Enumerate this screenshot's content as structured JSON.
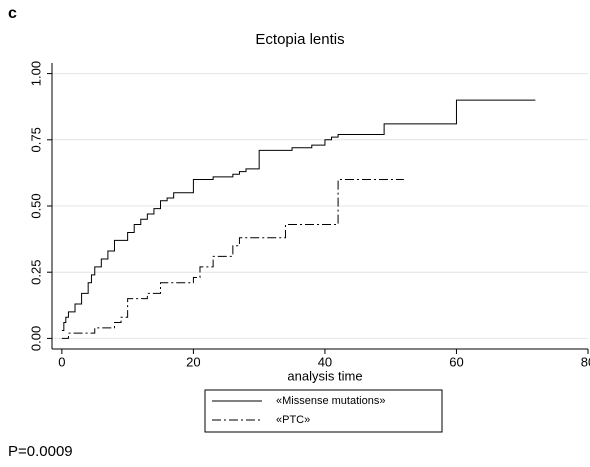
{
  "chart_data": {
    "type": "step",
    "panel_label": "c",
    "title": "Ectopia lentis",
    "x_label": "analysis time",
    "annotation": "P=0.0009",
    "xlim": [
      -1.5,
      80
    ],
    "xticks": [
      0,
      20,
      40,
      60,
      80
    ],
    "ylim": [
      -0.04,
      1.04
    ],
    "yticks": [
      {
        "value": 0,
        "label": "0.00"
      },
      {
        "value": 0.25,
        "label": "0.25"
      },
      {
        "value": 0.5,
        "label": "0.50"
      },
      {
        "value": 0.75,
        "label": "0.75"
      },
      {
        "value": 1,
        "label": "1.00"
      }
    ],
    "grid": true,
    "series": [
      {
        "name": "«Missense mutations»",
        "color": "#000000",
        "dash": "solid",
        "x": [
          0,
          0.3,
          0.6,
          1,
          2,
          3,
          4,
          4.5,
          5,
          6,
          7,
          8,
          10,
          11,
          12,
          13,
          14,
          15,
          16,
          17,
          20,
          23,
          26,
          27,
          28,
          30,
          35,
          38,
          40,
          41,
          42,
          49,
          60,
          72
        ],
        "values": [
          0.03,
          0.06,
          0.08,
          0.1,
          0.13,
          0.17,
          0.21,
          0.24,
          0.27,
          0.3,
          0.33,
          0.37,
          0.4,
          0.43,
          0.45,
          0.47,
          0.49,
          0.52,
          0.53,
          0.55,
          0.6,
          0.61,
          0.62,
          0.63,
          0.64,
          0.71,
          0.72,
          0.73,
          0.75,
          0.76,
          0.77,
          0.81,
          0.9,
          0.9
        ]
      },
      {
        "name": "«PTC»",
        "color": "#000000",
        "dash": "dashdot",
        "x": [
          0,
          1,
          5,
          8,
          9,
          10,
          13,
          15,
          20,
          21,
          23,
          26,
          27,
          34,
          42,
          52
        ],
        "values": [
          0,
          0.02,
          0.04,
          0.06,
          0.08,
          0.15,
          0.17,
          0.21,
          0.23,
          0.27,
          0.31,
          0.35,
          0.38,
          0.43,
          0.6,
          0.6
        ]
      }
    ]
  }
}
